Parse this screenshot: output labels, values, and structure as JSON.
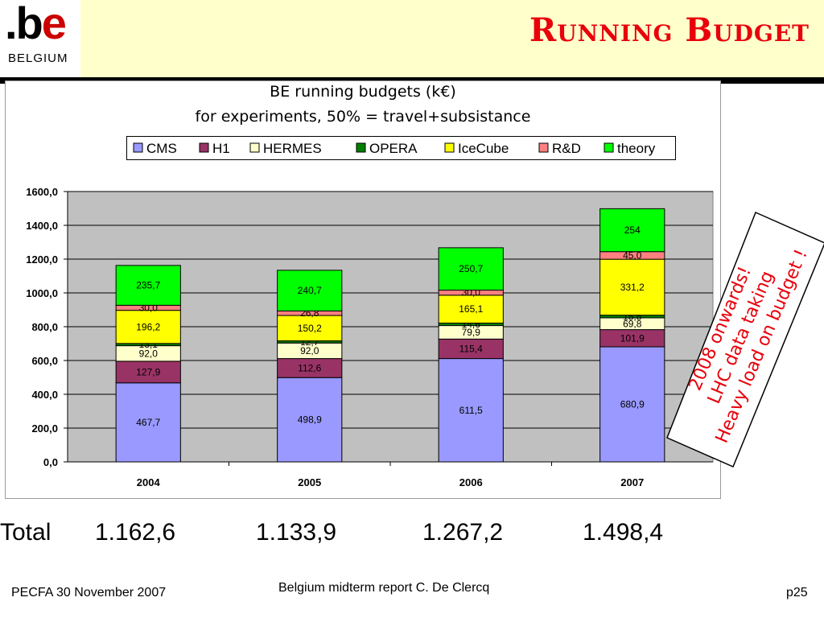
{
  "header": {
    "logo_main_prefix": ".b",
    "logo_main_accent": "e",
    "logo_sub": "BELGIUM",
    "title": "Running Budget"
  },
  "chart_data": {
    "type": "bar",
    "stacked": true,
    "title_line1": "BE running budgets (k€)",
    "title_line2": "for experiments, 50% = travel+subsistance",
    "categories": [
      "2004",
      "2005",
      "2006",
      "2007"
    ],
    "ylim": [
      0,
      1600
    ],
    "yticks": [
      "0,0",
      "200,0",
      "400,0",
      "600,0",
      "800,0",
      "1000,0",
      "1200,0",
      "1400,0",
      "1600,0"
    ],
    "grid": true,
    "legend_position": "top",
    "series": [
      {
        "name": "CMS",
        "color": "#9999ff",
        "values": [
          467.7,
          498.9,
          611.5,
          680.9
        ],
        "labels": [
          "467,7",
          "498,9",
          "611,5",
          "680,9"
        ]
      },
      {
        "name": "H1",
        "color": "#993366",
        "values": [
          127.9,
          112.6,
          115.4,
          101.9
        ],
        "labels": [
          "127,9",
          "112,6",
          "115,4",
          "101,9"
        ]
      },
      {
        "name": "HERMES",
        "color": "#ffffcc",
        "values": [
          92.0,
          92.0,
          79.9,
          69.8
        ],
        "labels": [
          "92,0",
          "92,0",
          "79,9",
          "69,8"
        ]
      },
      {
        "name": "OPERA",
        "color": "#008000",
        "values": [
          13.1,
          12.7,
          14.6,
          15.5
        ],
        "labels": [
          "13,1",
          "12,7",
          "14,6",
          "15,5"
        ]
      },
      {
        "name": "IceCube",
        "color": "#ffff00",
        "values": [
          196.2,
          150.2,
          165.1,
          331.2
        ],
        "labels": [
          "196,2",
          "150,2",
          "165,1",
          "331,2"
        ]
      },
      {
        "name": "R&D",
        "color": "#ff8080",
        "values": [
          30.0,
          26.8,
          30.0,
          45.0
        ],
        "labels": [
          "30,0",
          "26,8",
          "30,0",
          "45,0"
        ]
      },
      {
        "name": "theory",
        "color": "#00ff00",
        "values": [
          235.7,
          240.7,
          250.7,
          254
        ],
        "labels": [
          "235,7",
          "240,7",
          "250,7",
          "254"
        ]
      }
    ]
  },
  "totals": {
    "label": "Total",
    "values": [
      "1.162,6",
      "1.133,9",
      "1.267,2",
      "1.498,4"
    ]
  },
  "callout": {
    "line1": "2008 onwards!",
    "line2": "LHC data taking",
    "line3": "Heavy load on budget !",
    "color": "#e8000b"
  },
  "footer": {
    "left": "PECFA 30 November 2007",
    "center": "Belgium midterm report C. De Clercq",
    "right": "p25"
  }
}
